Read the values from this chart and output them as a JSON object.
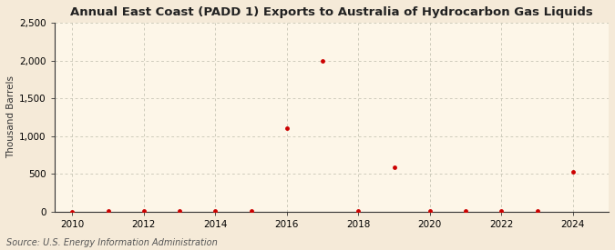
{
  "title": "Annual East Coast (PADD 1) Exports to Australia of Hydrocarbon Gas Liquids",
  "ylabel": "Thousand Barrels",
  "source": "Source: U.S. Energy Information Administration",
  "background_color": "#f5ead8",
  "plot_background_color": "#fdf6e8",
  "years": [
    2010,
    2011,
    2012,
    2013,
    2014,
    2015,
    2016,
    2017,
    2018,
    2019,
    2020,
    2021,
    2022,
    2023,
    2024
  ],
  "values": [
    0,
    5,
    5,
    8,
    10,
    8,
    1100,
    2000,
    5,
    580,
    8,
    10,
    8,
    10,
    520
  ],
  "marker_color": "#cc0000",
  "marker_size": 3.5,
  "ylim": [
    0,
    2500
  ],
  "yticks": [
    0,
    500,
    1000,
    1500,
    2000,
    2500
  ],
  "ytick_labels": [
    "0",
    "500",
    "1,000",
    "1,500",
    "2,000",
    "2,500"
  ],
  "xlim": [
    2009.5,
    2025.0
  ],
  "xticks": [
    2010,
    2012,
    2014,
    2016,
    2018,
    2020,
    2022,
    2024
  ],
  "title_fontsize": 9.5,
  "ylabel_fontsize": 7.5,
  "tick_fontsize": 7.5,
  "source_fontsize": 7.0
}
